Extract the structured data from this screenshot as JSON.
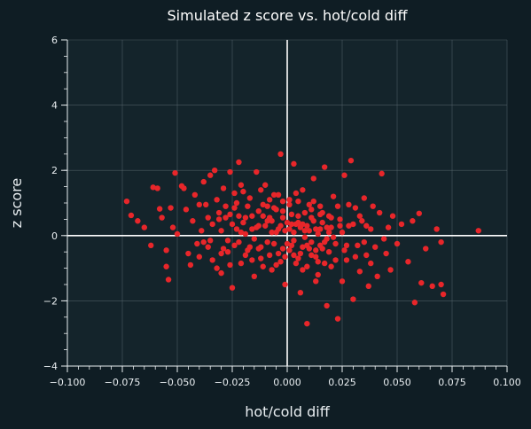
{
  "chart_data": {
    "type": "scatter",
    "title": "Simulated z score vs. hot/cold diff",
    "xlabel": "hot/cold diff",
    "ylabel": "z score",
    "xlim": [
      -0.1,
      0.1
    ],
    "ylim": [
      -4,
      6
    ],
    "xticks": [
      "−0.100",
      "−0.075",
      "−0.050",
      "−0.025",
      "0.000",
      "0.025",
      "0.050",
      "0.075",
      "0.100"
    ],
    "yticks": [
      "−4",
      "−2",
      "0",
      "2",
      "4",
      "6"
    ],
    "grid": true,
    "reference_lines": {
      "x": 0,
      "y": 0
    },
    "colors": {
      "background": "#0f1d24",
      "plot_background": "#14242b",
      "points": "#e8262a",
      "grid": "#5a6a70",
      "reference_line": "#ffffff"
    },
    "points": [
      [
        -0.073,
        1.05
      ],
      [
        -0.071,
        0.62
      ],
      [
        -0.068,
        0.45
      ],
      [
        -0.065,
        0.25
      ],
      [
        -0.062,
        -0.3
      ],
      [
        -0.061,
        1.48
      ],
      [
        -0.059,
        1.45
      ],
      [
        -0.058,
        0.82
      ],
      [
        -0.057,
        0.55
      ],
      [
        -0.055,
        -0.45
      ],
      [
        -0.055,
        -0.95
      ],
      [
        -0.054,
        -1.35
      ],
      [
        -0.053,
        0.85
      ],
      [
        -0.052,
        0.25
      ],
      [
        -0.051,
        1.92
      ],
      [
        -0.05,
        0.05
      ],
      [
        -0.048,
        1.52
      ],
      [
        -0.047,
        1.45
      ],
      [
        -0.046,
        0.8
      ],
      [
        -0.045,
        -0.55
      ],
      [
        -0.044,
        -0.9
      ],
      [
        -0.043,
        0.45
      ],
      [
        -0.042,
        1.25
      ],
      [
        -0.041,
        -0.25
      ],
      [
        -0.04,
        -0.65
      ],
      [
        -0.039,
        0.15
      ],
      [
        -0.038,
        1.65
      ],
      [
        -0.037,
        0.95
      ],
      [
        -0.036,
        -0.35
      ],
      [
        -0.035,
        1.85
      ],
      [
        -0.034,
        0.35
      ],
      [
        -0.033,
        2.0
      ],
      [
        -0.032,
        -1.0
      ],
      [
        -0.031,
        0.7
      ],
      [
        -0.03,
        -0.55
      ],
      [
        -0.029,
        1.45
      ],
      [
        -0.028,
        0.55
      ],
      [
        -0.027,
        -0.15
      ],
      [
        -0.026,
        1.95
      ],
      [
        -0.025,
        -1.6
      ],
      [
        -0.024,
        0.85
      ],
      [
        -0.023,
        0.2
      ],
      [
        -0.022,
        2.25
      ],
      [
        -0.021,
        -0.85
      ],
      [
        -0.02,
        1.35
      ],
      [
        -0.019,
        0.05
      ],
      [
        -0.018,
        -0.45
      ],
      [
        -0.017,
        1.15
      ],
      [
        -0.016,
        0.6
      ],
      [
        -0.015,
        -1.25
      ],
      [
        -0.014,
        1.95
      ],
      [
        -0.013,
        0.3
      ],
      [
        -0.012,
        -0.7
      ],
      [
        -0.011,
        0.95
      ],
      [
        -0.01,
        1.55
      ],
      [
        -0.009,
        -0.2
      ],
      [
        -0.008,
        0.55
      ],
      [
        -0.007,
        -1.05
      ],
      [
        -0.006,
        1.25
      ],
      [
        -0.005,
        0.1
      ],
      [
        -0.004,
        -0.55
      ],
      [
        -0.003,
        2.5
      ],
      [
        -0.002,
        0.75
      ],
      [
        -0.001,
        -1.5
      ],
      [
        0.0,
        0.4
      ],
      [
        0.001,
        1.1
      ],
      [
        0.002,
        -0.3
      ],
      [
        0.003,
        2.2
      ],
      [
        0.004,
        -0.85
      ],
      [
        0.005,
        0.6
      ],
      [
        0.006,
        -1.75
      ],
      [
        0.007,
        1.4
      ],
      [
        0.008,
        -0.05
      ],
      [
        0.009,
        -2.7
      ],
      [
        0.01,
        0.95
      ],
      [
        0.011,
        -0.6
      ],
      [
        0.012,
        1.75
      ],
      [
        0.013,
        0.2
      ],
      [
        0.014,
        -1.2
      ],
      [
        0.015,
        0.65
      ],
      [
        0.016,
        -0.4
      ],
      [
        0.017,
        2.1
      ],
      [
        0.018,
        -2.15
      ],
      [
        0.019,
        0.1
      ],
      [
        0.02,
        -0.95
      ],
      [
        0.021,
        1.2
      ],
      [
        0.022,
        -0.25
      ],
      [
        0.023,
        -2.55
      ],
      [
        0.024,
        0.5
      ],
      [
        0.025,
        -1.4
      ],
      [
        0.026,
        1.85
      ],
      [
        0.027,
        -0.75
      ],
      [
        0.028,
        0.3
      ],
      [
        0.029,
        2.3
      ],
      [
        0.03,
        -1.95
      ],
      [
        0.031,
        0.85
      ],
      [
        0.032,
        -0.3
      ],
      [
        0.033,
        -1.1
      ],
      [
        0.034,
        0.45
      ],
      [
        0.035,
        1.15
      ],
      [
        0.036,
        -0.6
      ],
      [
        0.037,
        -1.55
      ],
      [
        0.038,
        0.2
      ],
      [
        0.039,
        0.9
      ],
      [
        0.04,
        -0.35
      ],
      [
        0.041,
        -1.25
      ],
      [
        0.042,
        0.7
      ],
      [
        0.043,
        1.9
      ],
      [
        0.044,
        -0.1
      ],
      [
        0.045,
        -0.55
      ],
      [
        0.046,
        0.25
      ],
      [
        0.047,
        -1.05
      ],
      [
        0.048,
        0.6
      ],
      [
        0.05,
        -0.25
      ],
      [
        0.052,
        0.35
      ],
      [
        0.055,
        -0.8
      ],
      [
        0.057,
        0.45
      ],
      [
        0.058,
        -2.05
      ],
      [
        0.06,
        0.68
      ],
      [
        0.061,
        -1.45
      ],
      [
        0.063,
        -0.4
      ],
      [
        0.066,
        -1.55
      ],
      [
        0.068,
        0.2
      ],
      [
        0.07,
        -1.5
      ],
      [
        0.07,
        -0.2
      ],
      [
        0.071,
        -1.8
      ],
      [
        0.087,
        0.15
      ],
      [
        -0.024,
        -0.3
      ],
      [
        -0.02,
        0.4
      ],
      [
        -0.018,
        0.9
      ],
      [
        -0.015,
        -0.1
      ],
      [
        -0.013,
        0.75
      ],
      [
        -0.012,
        -0.35
      ],
      [
        -0.01,
        0.3
      ],
      [
        -0.009,
        0.9
      ],
      [
        -0.008,
        -0.6
      ],
      [
        -0.007,
        0.45
      ],
      [
        -0.006,
        -0.25
      ],
      [
        -0.005,
        0.8
      ],
      [
        -0.004,
        0.2
      ],
      [
        -0.003,
        -0.8
      ],
      [
        -0.002,
        0.55
      ],
      [
        -0.001,
        0.15
      ],
      [
        0.001,
        -0.45
      ],
      [
        0.002,
        0.65
      ],
      [
        0.003,
        -0.15
      ],
      [
        0.004,
        0.35
      ],
      [
        0.005,
        -0.7
      ],
      [
        0.006,
        0.25
      ],
      [
        0.007,
        -0.35
      ],
      [
        0.008,
        0.7
      ],
      [
        0.009,
        -0.95
      ],
      [
        0.01,
        0.15
      ],
      [
        0.011,
        -0.2
      ],
      [
        0.012,
        0.45
      ],
      [
        0.013,
        -0.65
      ],
      [
        0.014,
        0.05
      ],
      [
        0.015,
        -0.3
      ],
      [
        0.016,
        0.4
      ],
      [
        0.017,
        -0.85
      ],
      [
        0.018,
        0.25
      ],
      [
        0.019,
        -0.5
      ],
      [
        0.02,
        0.55
      ],
      [
        0.021,
        -0.05
      ],
      [
        0.022,
        -0.75
      ],
      [
        0.024,
        0.3
      ],
      [
        0.026,
        -0.45
      ],
      [
        -0.026,
        0.65
      ],
      [
        -0.022,
        -0.2
      ],
      [
        -0.019,
        0.55
      ],
      [
        -0.016,
        -0.75
      ],
      [
        -0.014,
        0.25
      ],
      [
        -0.011,
        -0.95
      ],
      [
        -0.008,
        1.1
      ],
      [
        -0.006,
        0.85
      ],
      [
        -0.003,
        0.3
      ],
      [
        -0.001,
        -0.65
      ],
      [
        0.001,
        0.95
      ],
      [
        0.003,
        0.1
      ],
      [
        0.005,
        0.4
      ],
      [
        0.007,
        -1.05
      ],
      [
        0.009,
        0.3
      ],
      [
        0.011,
        0.8
      ],
      [
        0.013,
        -0.45
      ],
      [
        0.015,
        0.2
      ],
      [
        0.017,
        -0.2
      ],
      [
        0.019,
        0.6
      ],
      [
        -0.03,
        0.15
      ],
      [
        -0.027,
        -0.5
      ],
      [
        -0.023,
        1.0
      ],
      [
        -0.021,
        0.1
      ],
      [
        -0.017,
        -0.35
      ],
      [
        -0.012,
        1.4
      ],
      [
        -0.009,
        0.45
      ],
      [
        -0.005,
        -0.9
      ],
      [
        -0.002,
        1.05
      ],
      [
        0.0,
        -0.25
      ],
      [
        0.002,
        0.35
      ],
      [
        0.004,
        1.3
      ],
      [
        0.006,
        -0.55
      ],
      [
        0.008,
        0.15
      ],
      [
        0.01,
        -0.4
      ],
      [
        0.012,
        1.05
      ],
      [
        0.014,
        -0.8
      ],
      [
        0.016,
        0.7
      ],
      [
        0.018,
        -0.1
      ],
      [
        0.02,
        0.25
      ],
      [
        -0.035,
        -0.15
      ],
      [
        -0.031,
        0.5
      ],
      [
        -0.029,
        -0.4
      ],
      [
        -0.025,
        0.35
      ],
      [
        -0.021,
        1.55
      ],
      [
        -0.019,
        -0.6
      ],
      [
        -0.016,
        0.2
      ],
      [
        -0.013,
        -0.4
      ],
      [
        -0.011,
        0.6
      ],
      [
        -0.007,
        0.1
      ],
      [
        -0.004,
        1.25
      ],
      [
        -0.002,
        -0.4
      ],
      [
        0.001,
        0.2
      ],
      [
        0.003,
        -0.6
      ],
      [
        0.005,
        1.05
      ],
      [
        0.007,
        0.35
      ],
      [
        0.009,
        -0.3
      ],
      [
        0.011,
        0.55
      ],
      [
        0.013,
        -1.4
      ],
      [
        0.015,
        0.9
      ],
      [
        0.023,
        0.9
      ],
      [
        0.025,
        0.1
      ],
      [
        0.027,
        -0.3
      ],
      [
        0.028,
        0.95
      ],
      [
        0.03,
        0.35
      ],
      [
        0.031,
        -0.65
      ],
      [
        0.033,
        0.6
      ],
      [
        0.035,
        -0.2
      ],
      [
        0.036,
        0.3
      ],
      [
        0.038,
        -0.85
      ],
      [
        -0.04,
        0.95
      ],
      [
        -0.038,
        -0.2
      ],
      [
        -0.036,
        0.55
      ],
      [
        -0.034,
        -0.75
      ],
      [
        -0.032,
        1.1
      ],
      [
        -0.03,
        -1.15
      ],
      [
        -0.028,
        0.9
      ],
      [
        -0.026,
        -0.9
      ],
      [
        -0.024,
        1.3
      ],
      [
        -0.022,
        0.6
      ]
    ]
  }
}
